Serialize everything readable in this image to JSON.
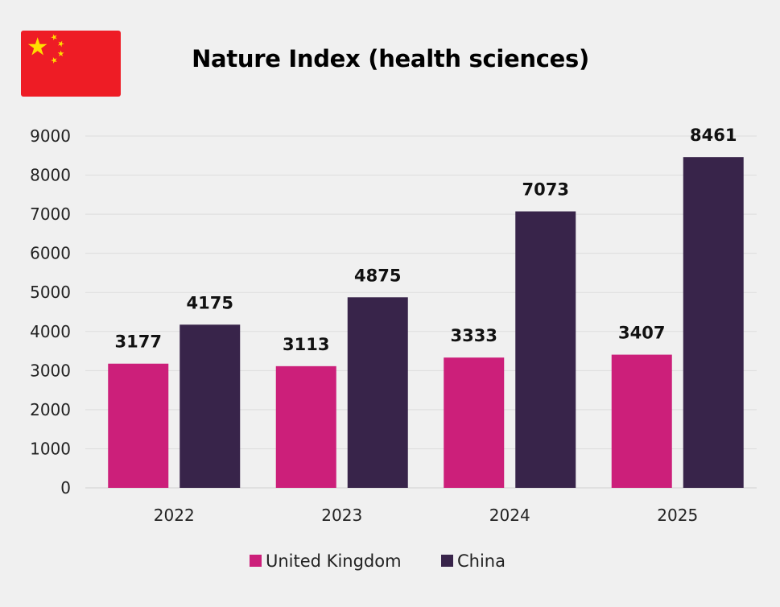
{
  "colors": {
    "background": "#f0f0f0",
    "united_kingdom": "#cc1f7a",
    "china": "#38244a",
    "flag_red": "#ee1c25",
    "flag_star": "#ffde00",
    "gridline": "#dddddd"
  },
  "flag_icon": "china-flag-icon",
  "chart_data": {
    "type": "bar",
    "title": "Nature Index (health sciences)",
    "categories": [
      "2022",
      "2023",
      "2024",
      "2025"
    ],
    "series": [
      {
        "name": "United Kingdom",
        "values": [
          3177,
          3113,
          3333,
          3407
        ]
      },
      {
        "name": "China",
        "values": [
          4175,
          4875,
          7073,
          8461
        ]
      }
    ],
    "ylim": [
      0,
      9000
    ],
    "yticks": [
      0,
      1000,
      2000,
      3000,
      4000,
      5000,
      6000,
      7000,
      8000,
      9000
    ],
    "xlabel": "",
    "ylabel": "",
    "grid": true,
    "legend": "bottom",
    "data_labels": true
  }
}
